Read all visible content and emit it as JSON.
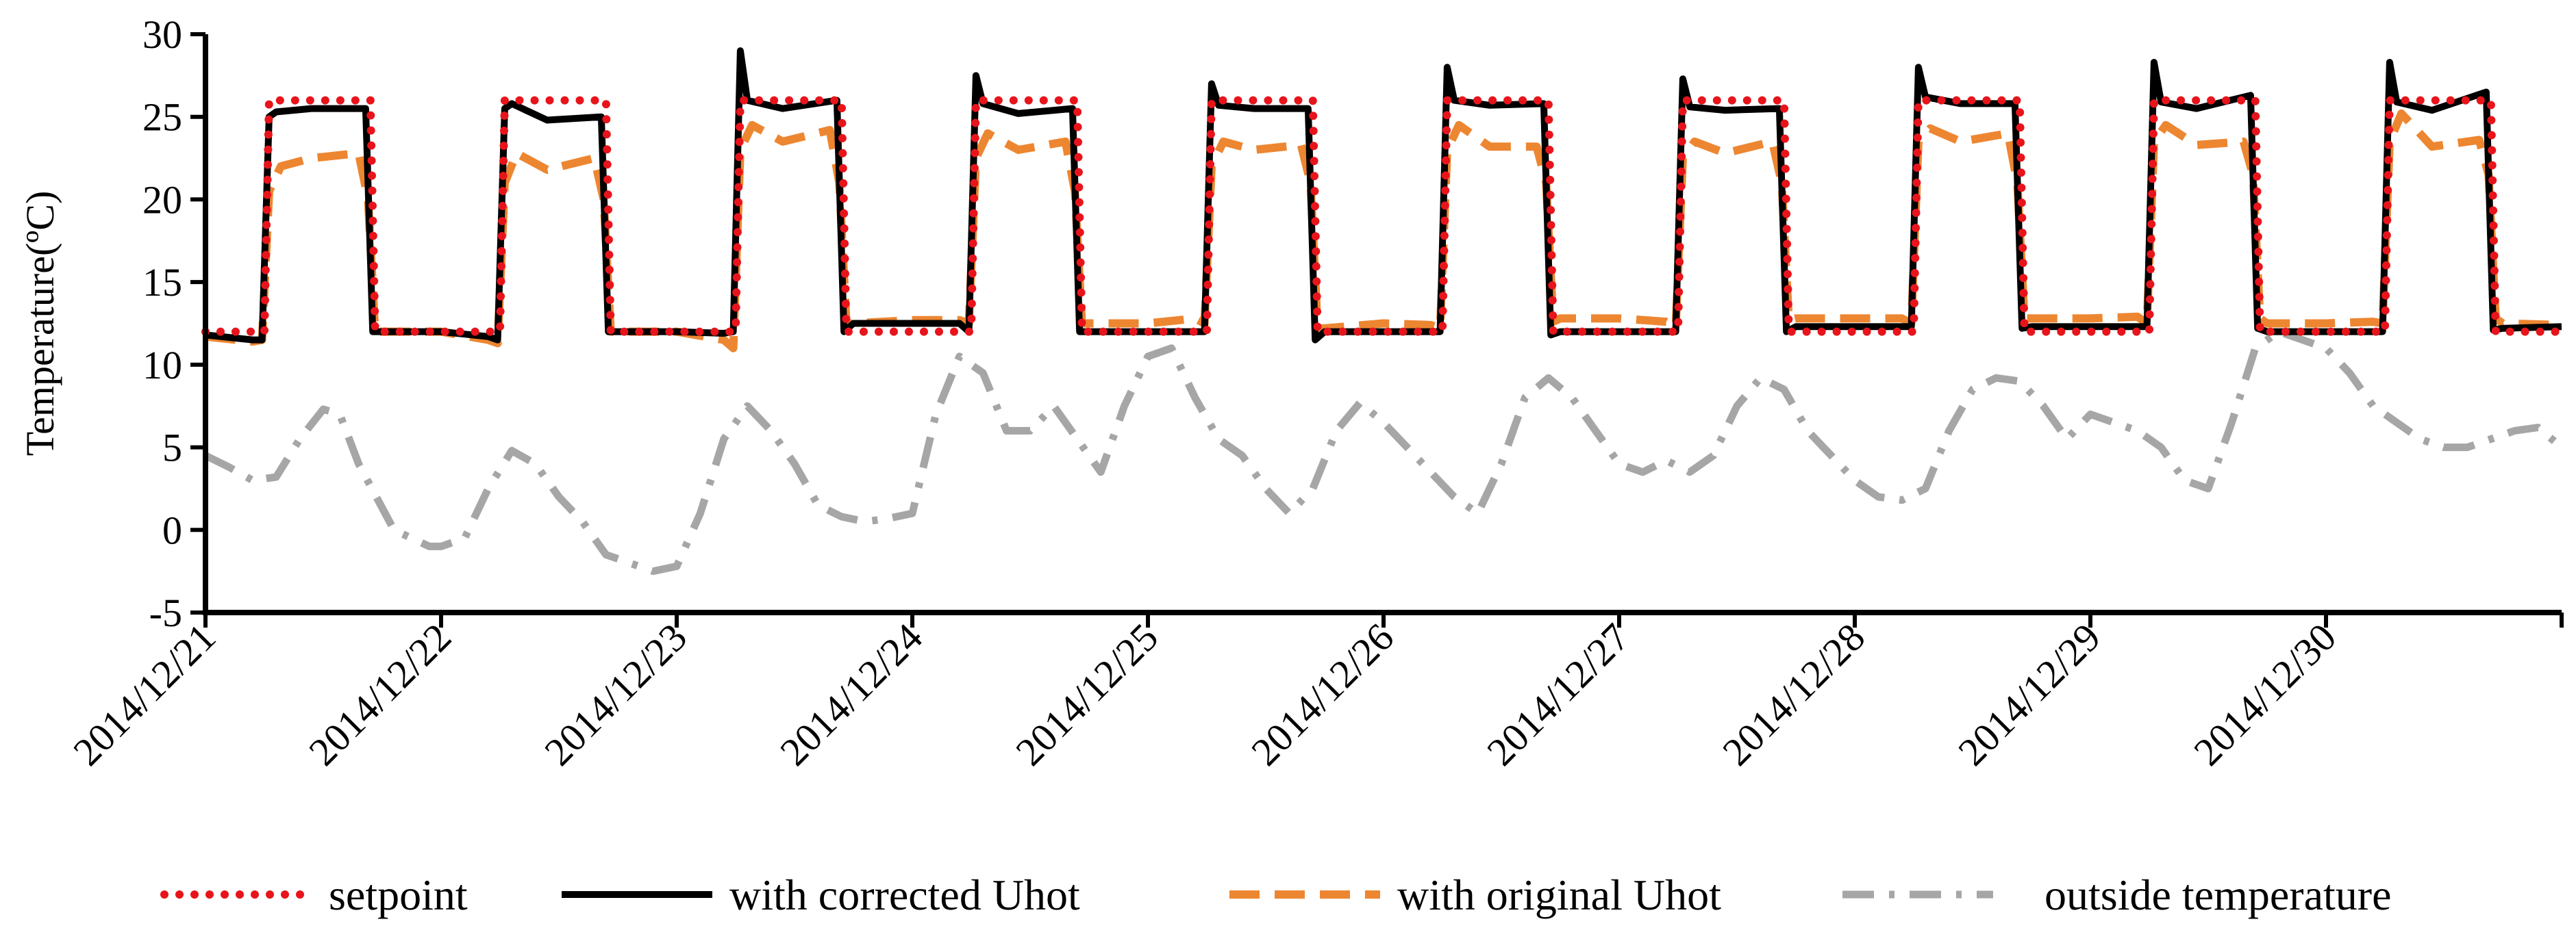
{
  "chart_data": {
    "type": "line",
    "title": "",
    "xlabel": "",
    "ylabel": "Temperature(ºC)",
    "ylim": [
      -5,
      30
    ],
    "yticks": [
      "30",
      "25",
      "20",
      "15",
      "10",
      "5",
      "0",
      "-5"
    ],
    "xlim": [
      0,
      10
    ],
    "xticks": [
      "2014/12/21",
      "2014/12/22",
      "2014/12/23",
      "2014/12/24",
      "2014/12/25",
      "2014/12/26",
      "2014/12/27",
      "2014/12/28",
      "2014/12/29",
      "2014/12/30"
    ],
    "grid": false,
    "legend_position": "bottom",
    "colors": {
      "setpoint": "#e8141b",
      "corrected": "#000000",
      "original": "#ed8631",
      "outside": "#a6a6a6"
    },
    "series": [
      {
        "name": "setpoint",
        "style": "dotted",
        "color": "#e8141b",
        "x": [
          0,
          0.25,
          0.27,
          0.7,
          0.72,
          1.0,
          1.25,
          1.27,
          1.7,
          1.72,
          2.0,
          2.25,
          2.27,
          2.7,
          2.72,
          3.0,
          3.25,
          3.27,
          3.7,
          3.72,
          4.0,
          4.25,
          4.27,
          4.7,
          4.72,
          5.0,
          5.25,
          5.27,
          5.7,
          5.72,
          6.0,
          6.25,
          6.27,
          6.7,
          6.72,
          7.0,
          7.25,
          7.27,
          7.7,
          7.72,
          8.0,
          8.25,
          8.27,
          8.7,
          8.72,
          9.0,
          9.25,
          9.27,
          9.7,
          9.72,
          10.0
        ],
        "y": [
          12,
          12,
          26,
          26,
          12,
          12,
          12,
          26,
          26,
          12,
          12,
          12,
          26,
          26,
          12,
          12,
          12,
          26,
          26,
          12,
          12,
          12,
          26,
          26,
          12,
          12,
          12,
          26,
          26,
          12,
          12,
          12,
          26,
          26,
          12,
          12,
          12,
          26,
          26,
          12,
          12,
          12,
          26,
          26,
          12,
          12,
          12,
          26,
          26,
          12,
          12
        ]
      },
      {
        "name": "with corrected Uhot",
        "style": "solid",
        "color": "#000000",
        "x": [
          0,
          0.2,
          0.24,
          0.27,
          0.3,
          0.45,
          0.68,
          0.71,
          0.75,
          1.0,
          1.2,
          1.24,
          1.27,
          1.3,
          1.45,
          1.68,
          1.71,
          1.75,
          2.0,
          2.2,
          2.24,
          2.27,
          2.3,
          2.45,
          2.68,
          2.71,
          2.75,
          3.0,
          3.2,
          3.24,
          3.27,
          3.3,
          3.45,
          3.68,
          3.71,
          3.75,
          4.0,
          4.2,
          4.24,
          4.27,
          4.3,
          4.45,
          4.68,
          4.71,
          4.75,
          5.0,
          5.2,
          5.24,
          5.27,
          5.3,
          5.45,
          5.68,
          5.71,
          5.75,
          6.0,
          6.2,
          6.24,
          6.27,
          6.3,
          6.45,
          6.68,
          6.71,
          6.75,
          7.0,
          7.2,
          7.24,
          7.27,
          7.3,
          7.45,
          7.68,
          7.71,
          7.75,
          8.0,
          8.2,
          8.24,
          8.27,
          8.3,
          8.45,
          8.68,
          8.71,
          8.75,
          9.0,
          9.2,
          9.24,
          9.27,
          9.3,
          9.45,
          9.68,
          9.71,
          9.75,
          10.0
        ],
        "y": [
          11.8,
          11.5,
          11.5,
          25.0,
          25.3,
          25.5,
          25.5,
          12.0,
          12.0,
          12.0,
          11.7,
          11.5,
          25.5,
          25.8,
          24.8,
          25.0,
          12.0,
          12.0,
          12.0,
          11.9,
          12.0,
          29.0,
          26.0,
          25.5,
          26.0,
          12.0,
          12.5,
          12.5,
          12.5,
          12.0,
          27.5,
          25.8,
          25.2,
          25.5,
          12.0,
          12.0,
          12.0,
          12.0,
          12.0,
          27.0,
          25.7,
          25.5,
          25.5,
          11.5,
          12.0,
          12.0,
          12.0,
          12.0,
          28.0,
          26.0,
          25.7,
          25.8,
          11.8,
          12.0,
          12.0,
          12.0,
          12.0,
          27.3,
          25.6,
          25.4,
          25.5,
          12.0,
          12.3,
          12.3,
          12.3,
          12.3,
          28.0,
          26.2,
          25.8,
          25.8,
          12.2,
          12.3,
          12.3,
          12.3,
          12.3,
          28.3,
          25.9,
          25.5,
          26.3,
          12.2,
          12.0,
          12.0,
          12.0,
          12.0,
          28.3,
          25.9,
          25.4,
          26.5,
          12.1,
          12.2,
          12.3
        ]
      },
      {
        "name": "with original Uhot",
        "style": "dashed",
        "color": "#ed8631",
        "x": [
          0,
          0.2,
          0.24,
          0.27,
          0.32,
          0.45,
          0.65,
          0.69,
          0.72,
          0.75,
          1.0,
          1.2,
          1.24,
          1.27,
          1.32,
          1.45,
          1.65,
          1.69,
          1.72,
          1.75,
          2.0,
          2.2,
          2.24,
          2.27,
          2.32,
          2.45,
          2.65,
          2.69,
          2.72,
          2.75,
          3.0,
          3.2,
          3.24,
          3.27,
          3.32,
          3.45,
          3.65,
          3.69,
          3.72,
          3.75,
          4.0,
          4.2,
          4.24,
          4.27,
          4.32,
          4.45,
          4.65,
          4.69,
          4.72,
          4.75,
          5.0,
          5.2,
          5.24,
          5.27,
          5.32,
          5.45,
          5.65,
          5.69,
          5.72,
          5.75,
          6.0,
          6.2,
          6.24,
          6.27,
          6.32,
          6.45,
          6.65,
          6.69,
          6.72,
          6.75,
          7.0,
          7.2,
          7.24,
          7.27,
          7.32,
          7.45,
          7.65,
          7.69,
          7.72,
          7.75,
          8.0,
          8.2,
          8.24,
          8.27,
          8.32,
          8.45,
          8.65,
          8.69,
          8.72,
          8.75,
          9.0,
          9.2,
          9.24,
          9.27,
          9.32,
          9.45,
          9.65,
          9.69,
          9.72,
          9.75,
          10.0
        ],
        "y": [
          11.7,
          11.4,
          11.5,
          20.5,
          22.0,
          22.5,
          22.8,
          20.0,
          12.0,
          12.0,
          12.0,
          11.5,
          11.3,
          21.0,
          22.8,
          21.8,
          22.5,
          20.0,
          12.0,
          12.0,
          12.0,
          11.5,
          11.0,
          23.0,
          24.5,
          23.5,
          24.2,
          21.0,
          12.5,
          12.5,
          12.7,
          12.7,
          12.5,
          22.5,
          24.0,
          23.0,
          23.5,
          20.5,
          12.5,
          12.5,
          12.5,
          12.8,
          12.5,
          22.0,
          23.5,
          23.0,
          23.3,
          21.0,
          12.2,
          12.2,
          12.5,
          12.4,
          12.2,
          23.0,
          24.5,
          23.2,
          23.2,
          21.0,
          12.6,
          12.8,
          12.8,
          12.6,
          12.3,
          22.5,
          23.5,
          22.8,
          23.5,
          21.0,
          12.7,
          12.8,
          12.8,
          12.8,
          12.5,
          23.5,
          24.3,
          23.5,
          24.0,
          21.0,
          12.8,
          12.8,
          12.8,
          12.9,
          12.5,
          23.5,
          24.5,
          23.3,
          23.5,
          21.5,
          12.8,
          12.5,
          12.5,
          12.6,
          12.5,
          23.5,
          25.2,
          23.2,
          23.6,
          21.5,
          12.8,
          12.5,
          12.4
        ]
      },
      {
        "name": "outside temperature",
        "style": "dashdot",
        "color": "#a6a6a6",
        "x": [
          0,
          0.1,
          0.2,
          0.3,
          0.4,
          0.5,
          0.57,
          0.65,
          0.8,
          0.95,
          1.0,
          1.1,
          1.2,
          1.3,
          1.4,
          1.5,
          1.6,
          1.7,
          1.8,
          1.9,
          2.0,
          2.1,
          2.2,
          2.3,
          2.4,
          2.5,
          2.6,
          2.7,
          2.8,
          2.9,
          3.0,
          3.1,
          3.2,
          3.3,
          3.4,
          3.5,
          3.6,
          3.7,
          3.8,
          3.9,
          4.0,
          4.1,
          4.2,
          4.3,
          4.4,
          4.5,
          4.6,
          4.7,
          4.8,
          4.9,
          5.0,
          5.1,
          5.2,
          5.3,
          5.4,
          5.5,
          5.6,
          5.7,
          5.8,
          5.9,
          6.0,
          6.1,
          6.2,
          6.3,
          6.4,
          6.5,
          6.6,
          6.7,
          6.8,
          6.9,
          7.0,
          7.1,
          7.2,
          7.3,
          7.4,
          7.5,
          7.6,
          7.7,
          7.8,
          7.9,
          8.0,
          8.1,
          8.2,
          8.3,
          8.4,
          8.5,
          8.6,
          8.7,
          8.8,
          8.9,
          9.0,
          9.1,
          9.2,
          9.3,
          9.4,
          9.5,
          9.6,
          9.7,
          9.8,
          9.9,
          10.0
        ],
        "y": [
          4.5,
          3.8,
          3.0,
          3.2,
          5.5,
          7.3,
          7.0,
          4.0,
          0.0,
          -1.0,
          -1.0,
          -0.5,
          2.5,
          4.8,
          4.0,
          2.0,
          0.5,
          -1.5,
          -2.0,
          -2.5,
          -2.2,
          1.0,
          5.5,
          7.5,
          6.0,
          4.0,
          1.5,
          0.8,
          0.5,
          0.7,
          1.0,
          7.0,
          10.5,
          9.5,
          6.0,
          6.0,
          7.5,
          5.5,
          3.5,
          7.5,
          10.5,
          11.0,
          8.0,
          5.5,
          4.5,
          2.5,
          1.0,
          2.5,
          6.0,
          7.7,
          6.5,
          5.0,
          3.5,
          2.0,
          1.0,
          4.0,
          8.0,
          9.2,
          8.0,
          6.0,
          4.0,
          3.5,
          4.2,
          3.5,
          4.5,
          7.5,
          9.2,
          8.5,
          6.0,
          4.5,
          3.0,
          2.0,
          1.8,
          2.5,
          6.0,
          8.5,
          9.2,
          9.0,
          7.5,
          5.5,
          7.0,
          6.5,
          6.0,
          5.0,
          3.0,
          2.5,
          6.5,
          11.0,
          12.0,
          11.5,
          11.0,
          9.5,
          7.5,
          6.5,
          5.5,
          5.0,
          5.0,
          5.5,
          6.0,
          6.2,
          5.0
        ]
      }
    ]
  }
}
